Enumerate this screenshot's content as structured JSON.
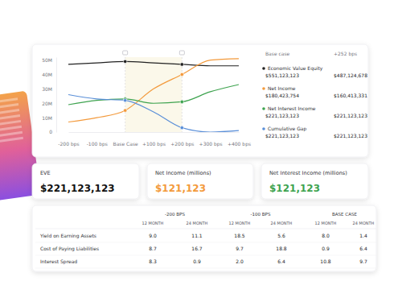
{
  "chart_data": {
    "type": "line",
    "categories": [
      "-200 bps",
      "-100 bps",
      "Base Case",
      "+100 bps",
      "+200 bps",
      "+300 bps",
      "+400 bps"
    ],
    "series": [
      {
        "name": "Economic Value Equity",
        "color": "#222222",
        "values": [
          47,
          48,
          49,
          48,
          47,
          46,
          46
        ]
      },
      {
        "name": "Net Income",
        "color": "#f39a3c",
        "values": [
          7,
          10,
          15,
          30,
          40,
          50,
          51
        ]
      },
      {
        "name": "Net Interest Income",
        "color": "#3ea34f",
        "values": [
          19,
          22,
          23,
          20,
          21,
          28,
          33
        ]
      },
      {
        "name": "Cumulative Gap",
        "color": "#5a8fd8",
        "values": [
          26,
          23,
          22,
          14,
          3,
          0,
          1
        ]
      }
    ],
    "ylim": [
      0,
      52
    ],
    "yticks": [
      0,
      {
        "value": 10,
        "label": "10M"
      },
      {
        "value": 20,
        "label": "20M"
      },
      {
        "value": 30,
        "label": "30M"
      },
      {
        "value": 40,
        "label": "40M"
      },
      {
        "value": 50,
        "label": "50M"
      }
    ],
    "grid": false,
    "legend": "right"
  },
  "legend_table": {
    "columns": [
      "Base case",
      "+252 bps"
    ],
    "rows": [
      [
        "$551,123,123",
        "$487,124,678"
      ],
      [
        "$180,423,754",
        "$160,413,331"
      ],
      [
        "$221,123,123",
        "$221,123,123"
      ],
      [
        "$221,123,123",
        "$221,123,123"
      ]
    ]
  },
  "cards": [
    {
      "label": "EVE",
      "value": "$221,123,123",
      "color": "#111111"
    },
    {
      "label": "Net Income (millions)",
      "value": "$121,123",
      "color": "#f39a3c"
    },
    {
      "label": "Net Interest Income (millions)",
      "value": "$121,123",
      "color": "#3ea34f"
    }
  ],
  "table": {
    "groups": [
      "-200 BPS",
      "-100 BPS",
      "BASE CASE"
    ],
    "columns": [
      "12 MONTH",
      "24 MONTH",
      "12 MONTH",
      "24 MONTH",
      "12 MONTH",
      "24 MONTH"
    ],
    "rows": [
      {
        "label": "Yield on Earning Assets",
        "values": [
          "9.0",
          "11.1",
          "18.5",
          "5.6",
          "8.0",
          "1.4"
        ]
      },
      {
        "label": "Cost of Paying Liabilities",
        "values": [
          "8.7",
          "16.7",
          "9.7",
          "18.8",
          "0.9",
          "6.4"
        ]
      },
      {
        "label": "Interest Spread",
        "values": [
          "8.3",
          "0.9",
          "2.0",
          "6.4",
          "10.8",
          "9.7"
        ]
      }
    ]
  }
}
